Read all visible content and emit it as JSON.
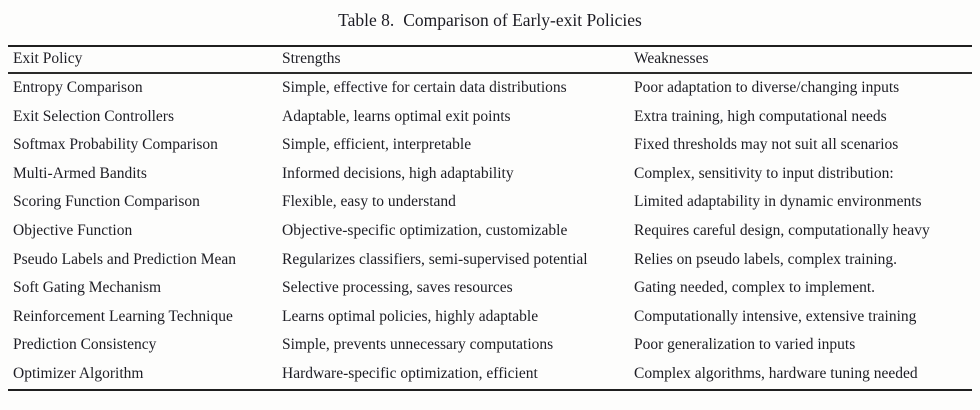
{
  "page": {
    "background": "#fdfdfc",
    "text_color": "#1d1d24",
    "rule_color": "#1f1f1f"
  },
  "caption": {
    "label": "Table 8.",
    "text": "Comparison of Early-exit Policies"
  },
  "table": {
    "headers": [
      "Exit Policy",
      "Strengths",
      "Weaknesses"
    ],
    "rows": [
      {
        "policy": "Entropy Comparison",
        "strengths": "Simple, effective for certain data distributions",
        "weaknesses": "Poor adaptation to diverse/changing inputs"
      },
      {
        "policy": "Exit Selection Controllers",
        "strengths": "Adaptable, learns optimal exit points",
        "weaknesses": "Extra training, high computational needs"
      },
      {
        "policy": "Softmax Probability Comparison",
        "strengths": "Simple, efficient, interpretable",
        "weaknesses": "Fixed thresholds may not suit all scenarios"
      },
      {
        "policy": "Multi-Armed Bandits",
        "strengths": "Informed decisions, high adaptability",
        "weaknesses": "Complex, sensitivity to input distribution:"
      },
      {
        "policy": "Scoring Function Comparison",
        "strengths": "Flexible, easy to understand",
        "weaknesses": "Limited adaptability in dynamic environments"
      },
      {
        "policy": "Objective Function",
        "strengths": "Objective-specific optimization, customizable",
        "weaknesses": "Requires careful design, computationally heavy"
      },
      {
        "policy": "Pseudo Labels and Prediction Mean",
        "strengths": "Regularizes classifiers, semi-supervised potential",
        "weaknesses": "Relies on pseudo labels, complex training."
      },
      {
        "policy": "Soft Gating Mechanism",
        "strengths": "Selective processing, saves resources",
        "weaknesses": "Gating needed, complex to implement."
      },
      {
        "policy": "Reinforcement Learning Technique",
        "strengths": "Learns optimal policies, highly adaptable",
        "weaknesses": "Computationally intensive, extensive training"
      },
      {
        "policy": "Prediction Consistency",
        "strengths": "Simple, prevents unnecessary computations",
        "weaknesses": "Poor generalization to varied inputs"
      },
      {
        "policy": "Optimizer Algorithm",
        "strengths": "Hardware-specific optimization, efficient",
        "weaknesses": "Complex algorithms, hardware tuning needed"
      }
    ]
  }
}
